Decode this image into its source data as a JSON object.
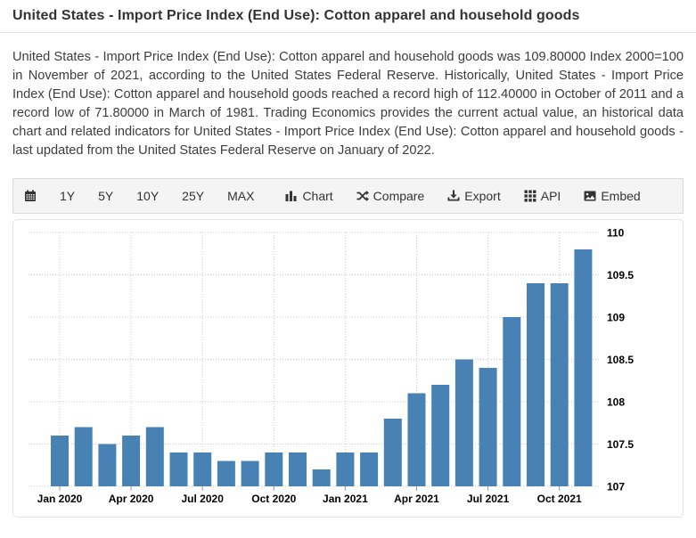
{
  "page": {
    "title": "United States - Import Price Index (End Use): Cotton apparel and household goods"
  },
  "description": "United States - Import Price Index (End Use): Cotton apparel and household goods was 109.80000 Index 2000=100 in November of 2021, according to the United States Federal Reserve. Historically, United States - Import Price Index (End Use): Cotton apparel and household goods reached a record high of 112.40000 in October of 2011 and a record low of 71.80000 in March of 1981. Trading Economics provides the current actual value, an historical data chart and related indicators for United States - Import Price Index (End Use): Cotton apparel and household goods - last updated from the United States Federal Reserve on January of 2022.",
  "toolbar": {
    "calendar_icon": "calendar-icon",
    "ranges": [
      {
        "label": "1Y"
      },
      {
        "label": "5Y"
      },
      {
        "label": "10Y"
      },
      {
        "label": "25Y"
      },
      {
        "label": "MAX"
      }
    ],
    "actions": [
      {
        "label": "Chart",
        "icon": "bar-chart-icon"
      },
      {
        "label": "Compare",
        "icon": "shuffle-icon"
      },
      {
        "label": "Export",
        "icon": "download-icon"
      },
      {
        "label": "API",
        "icon": "grid-icon"
      },
      {
        "label": "Embed",
        "icon": "image-icon"
      }
    ]
  },
  "chart_data": {
    "type": "bar",
    "title": "",
    "xlabel": "",
    "ylabel": "",
    "categories": [
      "Jan 2020",
      "Feb 2020",
      "Mar 2020",
      "Apr 2020",
      "May 2020",
      "Jun 2020",
      "Jul 2020",
      "Aug 2020",
      "Sep 2020",
      "Oct 2020",
      "Nov 2020",
      "Dec 2020",
      "Jan 2021",
      "Feb 2021",
      "Mar 2021",
      "Apr 2021",
      "May 2021",
      "Jun 2021",
      "Jul 2021",
      "Aug 2021",
      "Sep 2021",
      "Oct 2021",
      "Nov 2021"
    ],
    "values": [
      107.6,
      107.7,
      107.5,
      107.6,
      107.7,
      107.4,
      107.4,
      107.3,
      107.3,
      107.4,
      107.4,
      107.2,
      107.4,
      107.4,
      107.8,
      108.1,
      108.2,
      108.5,
      108.4,
      109.0,
      109.4,
      109.4,
      109.8
    ],
    "xtick_labels": [
      "Jan 2020",
      "Apr 2020",
      "Jul 2020",
      "Oct 2020",
      "Jan 2021",
      "Apr 2021",
      "Jul 2021",
      "Oct 2021"
    ],
    "xtick_indices": [
      0,
      3,
      6,
      9,
      12,
      15,
      18,
      21
    ],
    "yticks": [
      107,
      107.5,
      108,
      108.5,
      109,
      109.5,
      110
    ],
    "ylim": [
      107,
      110
    ],
    "yaxis_side": "right",
    "grid": "dotted",
    "legend": "none",
    "bar_color": "#4882b4",
    "gridline_color": "#c9c9c9",
    "tick_color": "#999999",
    "label_color": "#000000"
  }
}
